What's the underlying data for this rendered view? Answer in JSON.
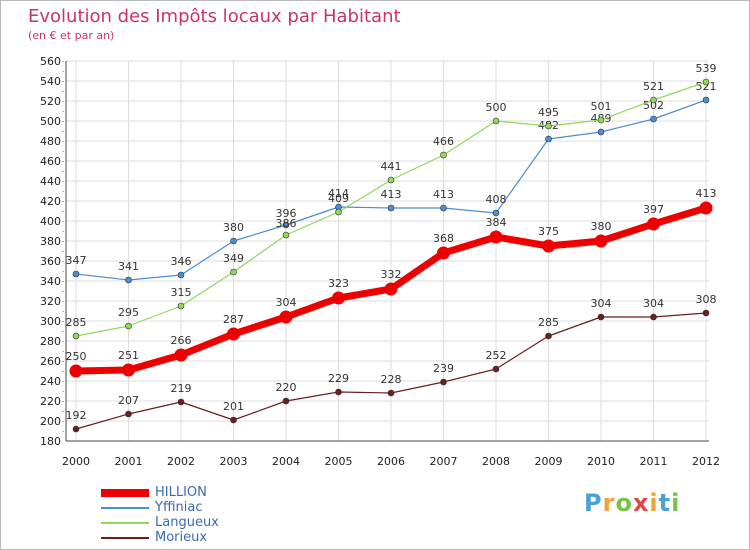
{
  "title": "Evolution des Impôts locaux par Habitant",
  "subtitle": "(en € et par an)",
  "brand": {
    "letters": [
      "P",
      "r",
      "o",
      "x",
      "i",
      "t",
      "i"
    ],
    "colors": [
      "#4aa0d8",
      "#f2a23a",
      "#7cc24a",
      "#e04848",
      "#f2a23a",
      "#4aa0d8",
      "#7cc24a"
    ]
  },
  "chart_data": {
    "type": "line",
    "x": [
      "2000",
      "2001",
      "2002",
      "2003",
      "2004",
      "2005",
      "2006",
      "2007",
      "2008",
      "2009",
      "2010",
      "2011",
      "2012"
    ],
    "ylim": [
      180,
      560
    ],
    "yticks": [
      180,
      200,
      220,
      240,
      260,
      280,
      300,
      320,
      340,
      360,
      380,
      400,
      420,
      440,
      460,
      480,
      500,
      520,
      540,
      560
    ],
    "grid": true,
    "legend_position": "bottom-left",
    "series": [
      {
        "name": "HILLION",
        "color": "#ee0000",
        "values": [
          250,
          251,
          266,
          287,
          304,
          323,
          332,
          368,
          384,
          375,
          380,
          397,
          413
        ],
        "bold": true
      },
      {
        "name": "Yffiniac",
        "color": "#4a8fd0",
        "values": [
          347,
          341,
          346,
          380,
          396,
          414,
          413,
          413,
          408,
          482,
          489,
          502,
          521
        ]
      },
      {
        "name": "Langueux",
        "color": "#8fd85a",
        "values": [
          285,
          295,
          315,
          349,
          386,
          409,
          441,
          466,
          500,
          495,
          501,
          521,
          539
        ]
      },
      {
        "name": "Morieux",
        "color": "#6a1e1e",
        "values": [
          192,
          207,
          219,
          201,
          220,
          229,
          228,
          239,
          252,
          285,
          304,
          304,
          308
        ]
      }
    ]
  }
}
